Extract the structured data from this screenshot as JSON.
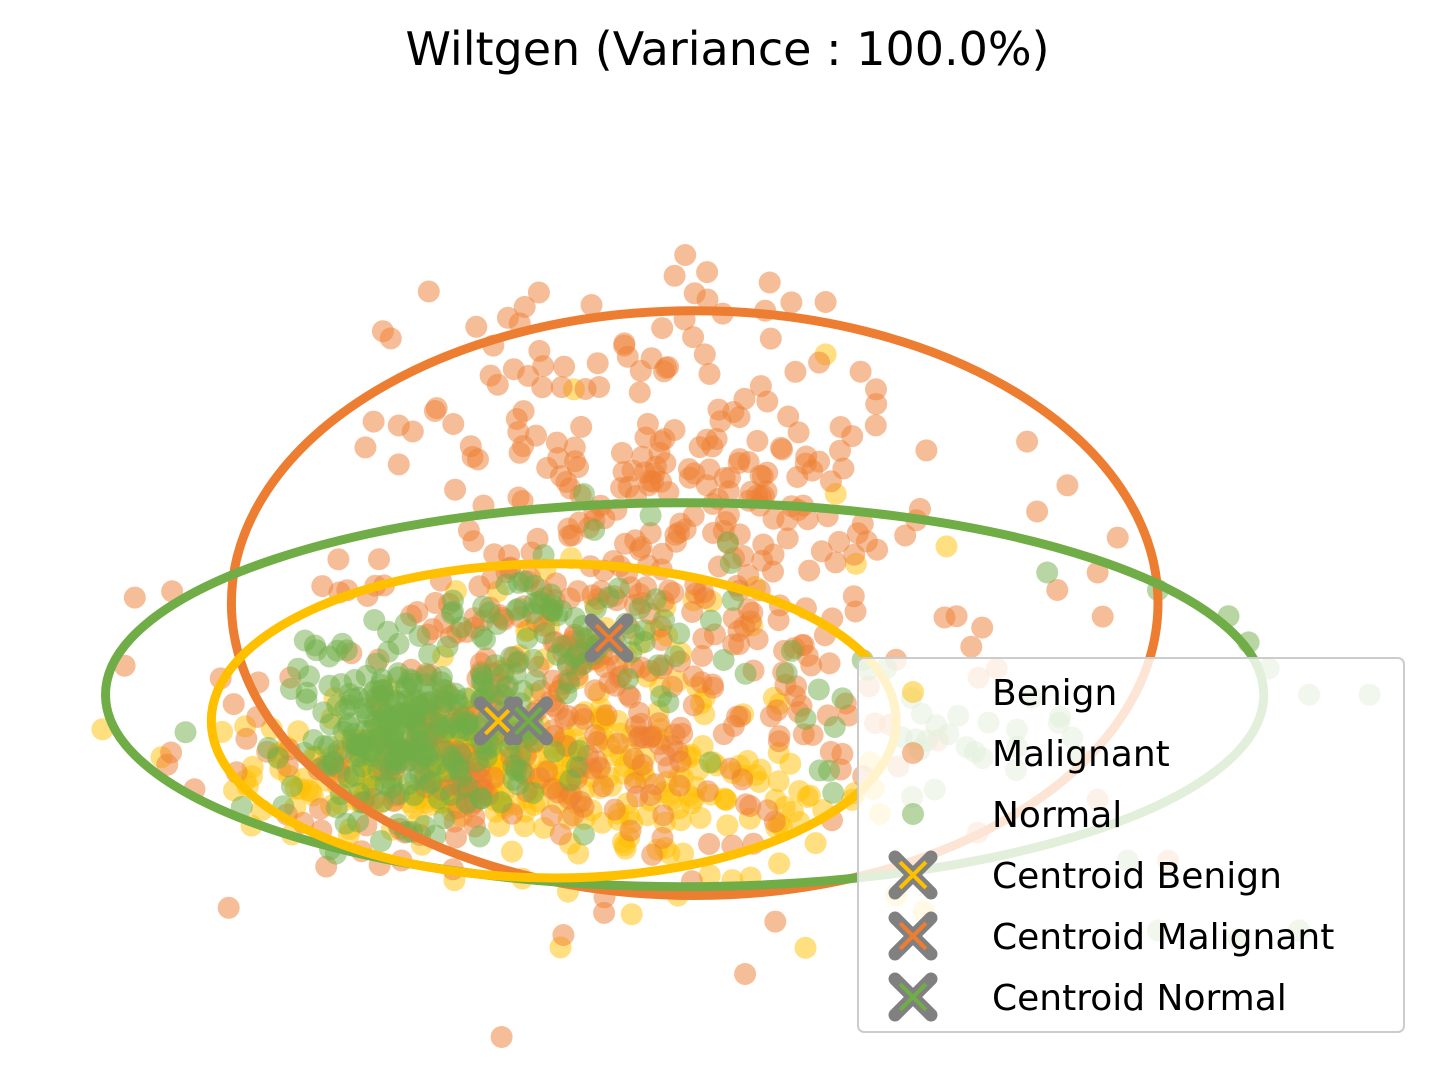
{
  "chart_data": {
    "type": "scatter",
    "title": "Wiltgen (Variance : 100.0%)",
    "xlabel": "",
    "ylabel": "",
    "axes_visible": false,
    "grid": false,
    "xlim": [
      -5,
      9
    ],
    "ylim": [
      -4,
      7
    ],
    "legend_position": "bottom-right",
    "series": [
      {
        "name": "Benign",
        "color": "#FFC000",
        "alpha": 0.5,
        "clusters": [
          {
            "center": [
              -0.8,
              -0.5
            ],
            "spread": [
              1.0,
              0.35
            ],
            "count": 260
          },
          {
            "center": [
              1.4,
              -0.9
            ],
            "spread": [
              1.1,
              0.5
            ],
            "count": 110
          },
          {
            "center": [
              0.6,
              0.6
            ],
            "spread": [
              1.0,
              0.6
            ],
            "count": 40
          }
        ],
        "points": [
          [
            -2.8,
            -1.2
          ],
          [
            -2.4,
            -1.3
          ],
          [
            3.2,
            1.8
          ],
          [
            4.1,
            2.0
          ],
          [
            3.0,
            2.6
          ],
          [
            2.9,
            4.2
          ],
          [
            0.4,
            3.8
          ],
          [
            2.7,
            -2.6
          ],
          [
            2.8,
            -1.4
          ],
          [
            3.6,
            -2.0
          ]
        ]
      },
      {
        "name": "Malignant",
        "color": "#ED7D31",
        "alpha": 0.5,
        "clusters": [
          {
            "center": [
              0.6,
              0.4
            ],
            "spread": [
              1.6,
              1.0
            ],
            "count": 340
          },
          {
            "center": [
              0.8,
              3.0
            ],
            "spread": [
              1.1,
              1.0
            ],
            "count": 150
          },
          {
            "center": [
              2.4,
              2.6
            ],
            "spread": [
              0.6,
              0.5
            ],
            "count": 50
          },
          {
            "center": [
              -0.9,
              -0.5
            ],
            "spread": [
              0.9,
              0.35
            ],
            "count": 60
          }
        ],
        "points": [
          [
            1.4,
            5.1
          ],
          [
            1.6,
            4.9
          ],
          [
            1.5,
            4.6
          ],
          [
            2.3,
            4.7
          ],
          [
            2.9,
            4.8
          ],
          [
            0.9,
            4.3
          ],
          [
            -0.4,
            4.3
          ],
          [
            1.7,
            4.2
          ],
          [
            2.6,
            4.0
          ],
          [
            3.4,
            3.8
          ],
          [
            3.9,
            3.1
          ],
          [
            4.9,
            3.2
          ],
          [
            5.3,
            2.7
          ],
          [
            3.8,
            2.3
          ],
          [
            5.0,
            2.4
          ],
          [
            5.8,
            2.1
          ],
          [
            5.6,
            1.7
          ],
          [
            5.2,
            1.5
          ],
          [
            4.2,
            1.2
          ],
          [
            4.6,
            0.6
          ],
          [
            3.6,
            0.7
          ],
          [
            3.1,
            0.2
          ],
          [
            0.7,
            -2.2
          ],
          [
            -0.8,
            -1.7
          ],
          [
            2.1,
            -2.9
          ],
          [
            2.4,
            -2.3
          ],
          [
            5.6,
            -0.9
          ],
          [
            6.3,
            -1.6
          ]
        ]
      },
      {
        "name": "Normal",
        "color": "#70AD47",
        "alpha": 0.5,
        "clusters": [
          {
            "center": [
              -1.2,
              -0.2
            ],
            "spread": [
              0.6,
              0.45
            ],
            "count": 260
          },
          {
            "center": [
              0.3,
              0.9
            ],
            "spread": [
              1.0,
              0.5
            ],
            "count": 90
          },
          {
            "center": [
              3.7,
              -0.2
            ],
            "spread": [
              0.8,
              0.3
            ],
            "count": 30
          }
        ],
        "points": [
          [
            0.5,
            2.6
          ],
          [
            0.1,
            1.9
          ],
          [
            -0.1,
            1.6
          ],
          [
            5.1,
            1.7
          ],
          [
            6.2,
            1.5
          ],
          [
            6.9,
            1.2
          ],
          [
            7.1,
            0.9
          ],
          [
            7.3,
            0.6
          ],
          [
            7.7,
            0.3
          ],
          [
            8.3,
            0.3
          ],
          [
            3.5,
            0.6
          ],
          [
            4.3,
            -0.3
          ],
          [
            4.8,
            -0.1
          ],
          [
            5.4,
            -0.4
          ],
          [
            5.9,
            -1.6
          ],
          [
            6.2,
            -2.4
          ],
          [
            7.0,
            -2.5
          ],
          [
            7.6,
            -2.4
          ],
          [
            0.5,
            -1.3
          ]
        ]
      }
    ],
    "centroids": [
      {
        "name": "Centroid Benign",
        "color": "#FFC000",
        "x": -0.35,
        "y": 0.0
      },
      {
        "name": "Centroid Malignant",
        "color": "#ED7D31",
        "x": 0.75,
        "y": 0.95
      },
      {
        "name": "Centroid Normal",
        "color": "#70AD47",
        "x": -0.05,
        "y": 0.0
      }
    ],
    "centroid_marker_edge_color": "#808080",
    "ellipses": [
      {
        "series": "Malignant",
        "color": "#ED7D31",
        "center": [
          1.6,
          1.35
        ],
        "width": 9.2,
        "height": 6.7
      },
      {
        "series": "Normal",
        "color": "#70AD47",
        "center": [
          1.5,
          0.3
        ],
        "width": 11.5,
        "height": 4.4
      },
      {
        "series": "Benign",
        "color": "#FFC000",
        "center": [
          0.2,
          0.0
        ],
        "width": 6.8,
        "height": 3.6
      }
    ]
  }
}
